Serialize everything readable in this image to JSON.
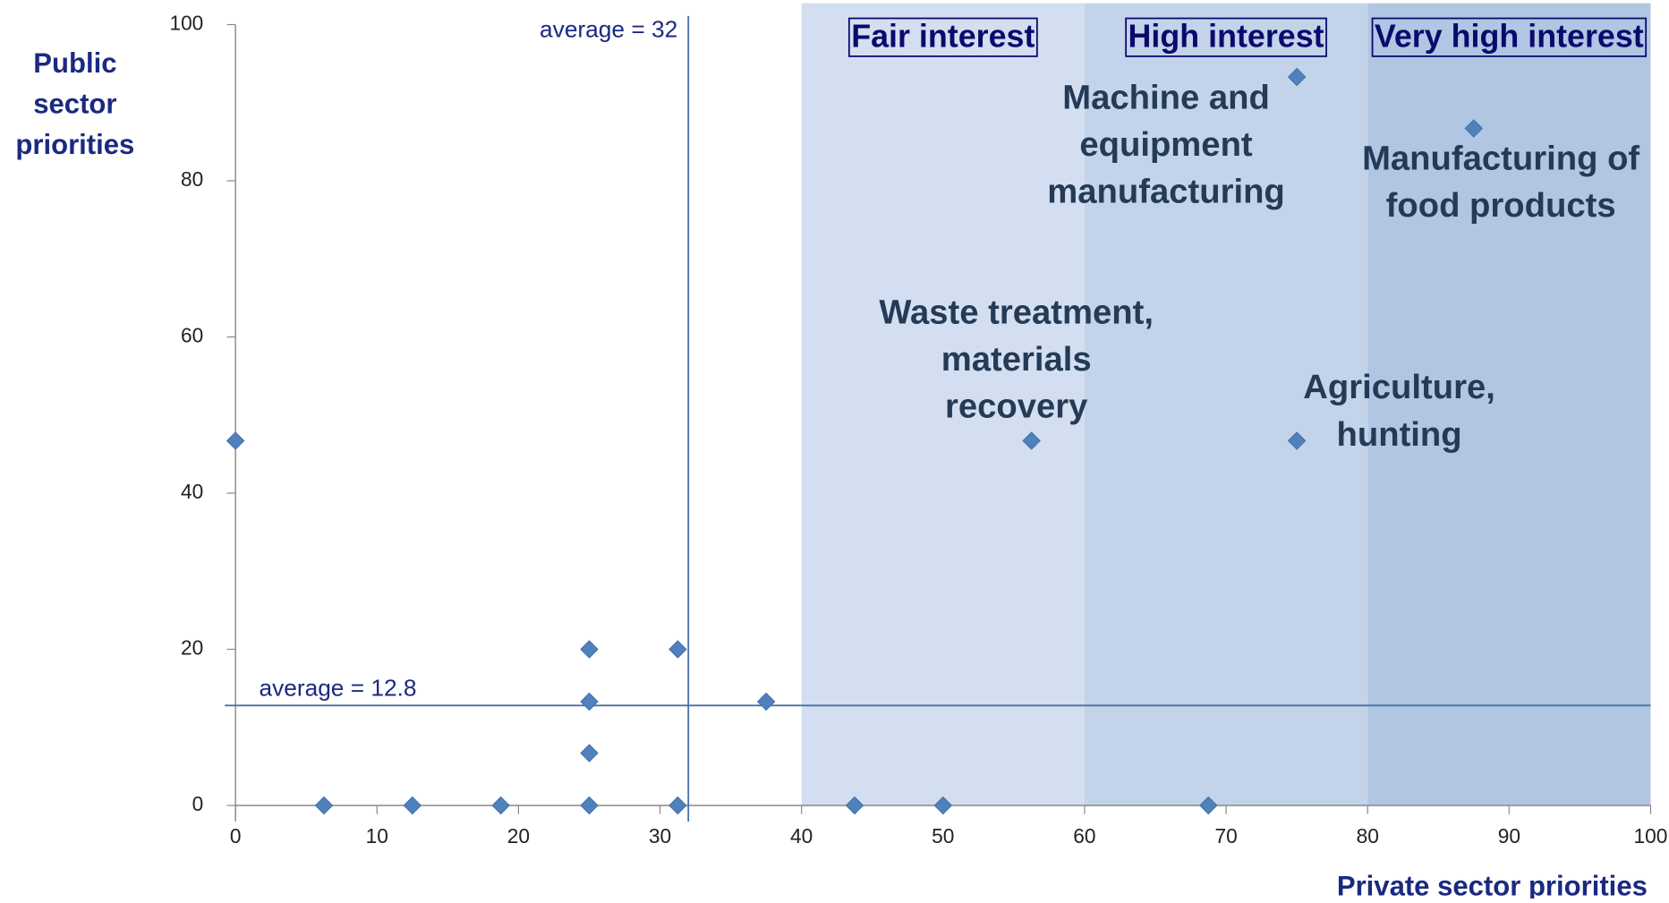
{
  "chart_data": {
    "type": "scatter",
    "x_label": "Private sector priorities",
    "y_label_lines": [
      "Public",
      "sector",
      "priorities"
    ],
    "xlim": [
      0,
      100
    ],
    "ylim": [
      0,
      100
    ],
    "xticks": [
      0,
      10,
      20,
      30,
      40,
      50,
      60,
      70,
      80,
      90,
      100
    ],
    "yticks": [
      0,
      20,
      40,
      60,
      80,
      100
    ],
    "color": "#4f81bd",
    "x": [
      0,
      6.25,
      12.5,
      18.75,
      25,
      31.25,
      25,
      31.25,
      25,
      37.5,
      25,
      43.75,
      50,
      68.75,
      56.25,
      75,
      75,
      87.5
    ],
    "values": [
      46.7,
      0,
      0,
      0,
      0,
      0,
      20,
      20,
      13.3,
      13.3,
      6.7,
      0,
      0,
      0,
      46.7,
      46.7,
      93.3,
      86.7
    ],
    "x_average": {
      "value": 32,
      "label": "average = 32"
    },
    "y_average": {
      "value": 12.8,
      "label": "average = 12.8"
    },
    "regions": [
      {
        "label": "Fair interest",
        "range": [
          40,
          60
        ],
        "color": "#d3dff0"
      },
      {
        "label": "High interest",
        "range": [
          60,
          80
        ],
        "color": "#c2d3ea"
      },
      {
        "label": "Very high interest",
        "range": [
          80,
          100
        ],
        "color": "#b0c6e2"
      }
    ],
    "annotations": [
      {
        "lines": [
          "Machine and",
          "equipment",
          "manufacturing"
        ]
      },
      {
        "lines": [
          "Manufacturing of",
          "food products"
        ]
      },
      {
        "lines": [
          "Waste treatment,",
          "materials",
          "recovery"
        ]
      },
      {
        "lines": [
          "Agriculture,",
          "hunting"
        ]
      }
    ]
  }
}
